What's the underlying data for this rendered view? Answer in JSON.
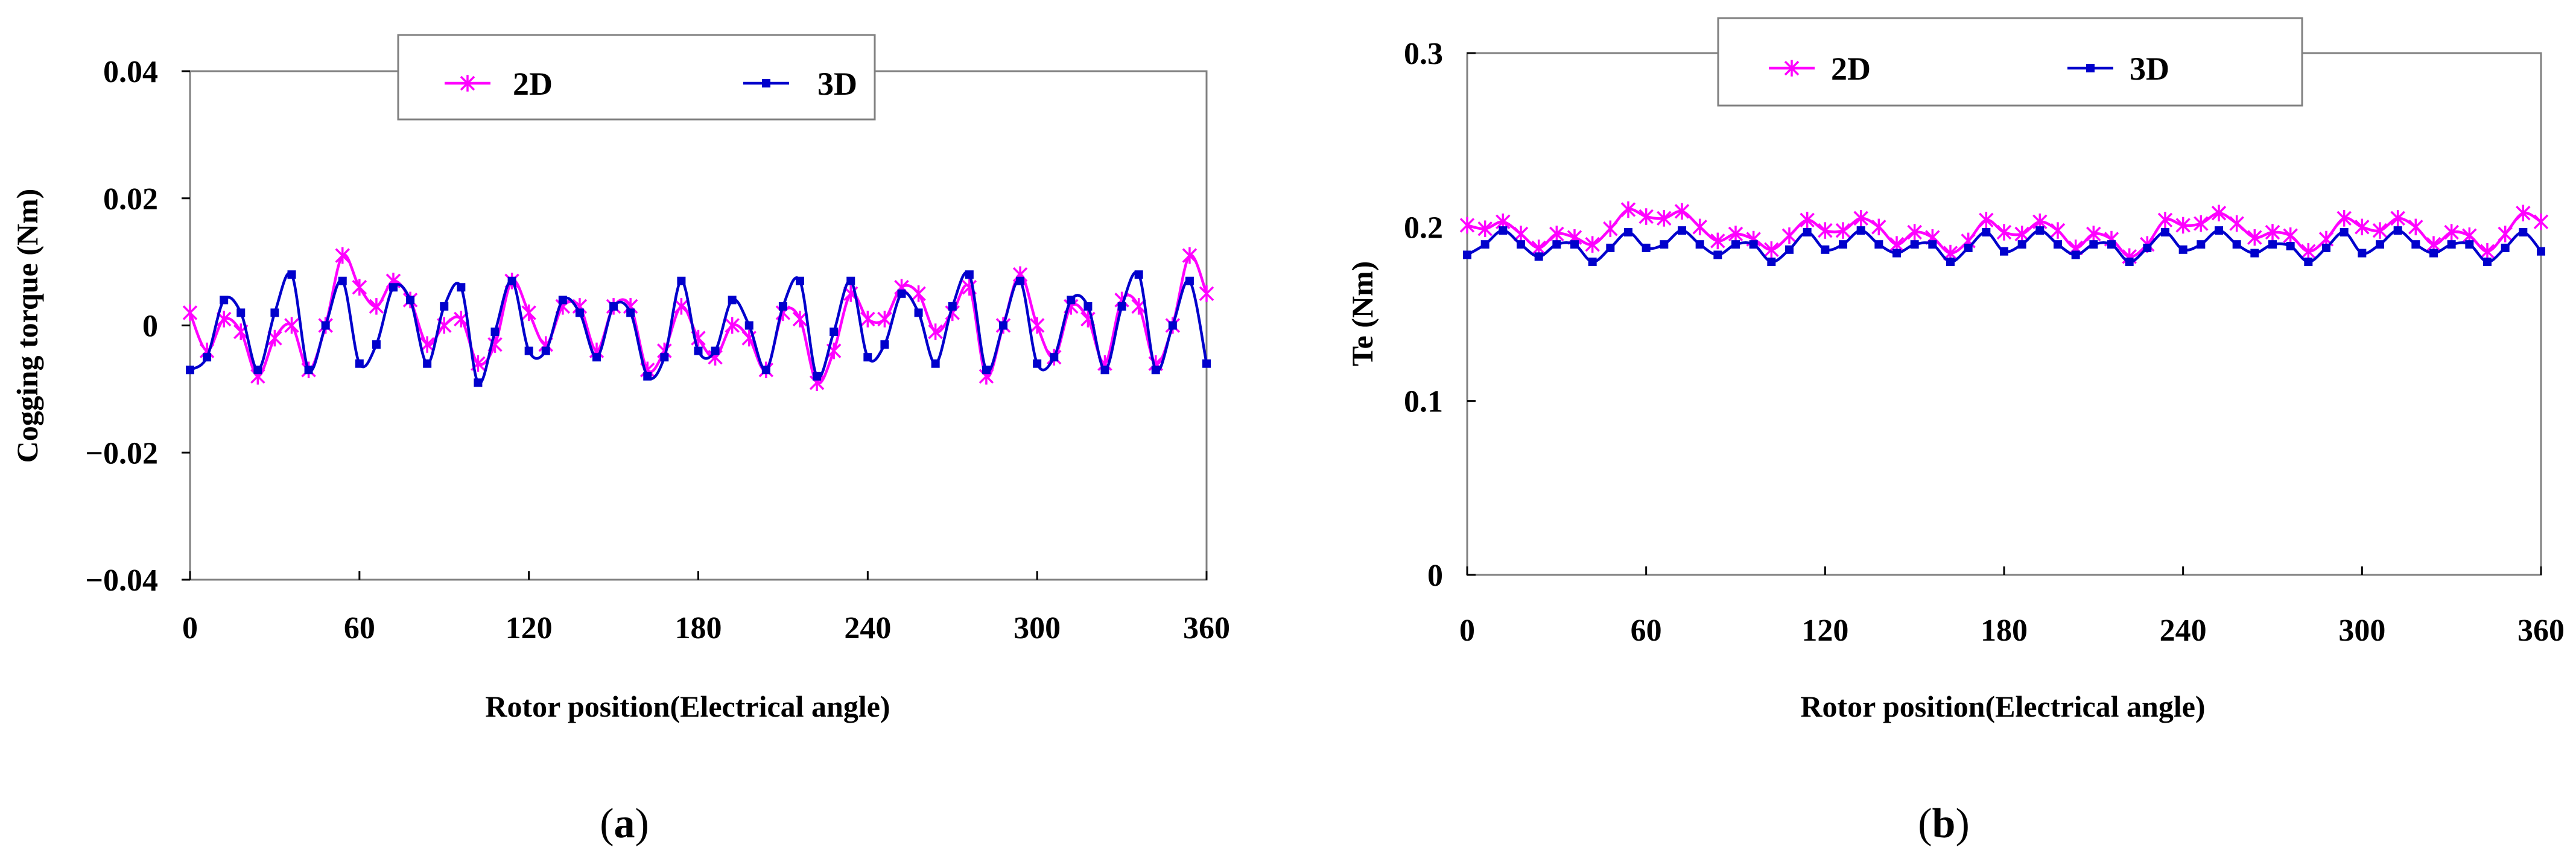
{
  "chart_data": [
    {
      "id": "a",
      "type": "line",
      "caption": "a",
      "xlabel": "Rotor position(Electrical angle)",
      "ylabel": "Cogging torque (Nm)",
      "xlim": [
        0,
        360
      ],
      "ylim": [
        -0.04,
        0.04
      ],
      "xticks": [
        0,
        60,
        120,
        180,
        240,
        300,
        360
      ],
      "xtick_labels": [
        "0",
        "60",
        "120",
        "180",
        "240",
        "300",
        "360"
      ],
      "yticks": [
        0.04,
        0.02,
        0,
        -0.02,
        -0.04
      ],
      "ytick_labels": [
        "0.04",
        "0.02",
        "0",
        "−0.02",
        "−0.04"
      ],
      "grid": false,
      "legend_position": "top-center",
      "x": [
        0,
        6,
        12,
        18,
        24,
        30,
        36,
        42,
        48,
        54,
        60,
        66,
        72,
        78,
        84,
        90,
        96,
        102,
        108,
        114,
        120,
        126,
        132,
        138,
        144,
        150,
        156,
        162,
        168,
        174,
        180,
        186,
        192,
        198,
        204,
        210,
        216,
        222,
        228,
        234,
        240,
        246,
        252,
        258,
        264,
        270,
        276,
        282,
        288,
        294,
        300,
        306,
        312,
        318,
        324,
        330,
        336,
        342,
        348,
        354,
        360
      ],
      "series": [
        {
          "name": "2D",
          "color": "#ff00ff",
          "marker": "asterisk",
          "values": [
            0.002,
            -0.004,
            0.001,
            -0.001,
            -0.008,
            -0.002,
            0.0,
            -0.007,
            0.0,
            0.011,
            0.006,
            0.003,
            0.007,
            0.004,
            -0.003,
            0.0,
            0.001,
            -0.006,
            -0.003,
            0.007,
            0.002,
            -0.003,
            0.003,
            0.003,
            -0.004,
            0.003,
            0.003,
            -0.007,
            -0.004,
            0.003,
            -0.002,
            -0.005,
            0.0,
            -0.002,
            -0.007,
            0.002,
            0.001,
            -0.009,
            -0.004,
            0.005,
            0.001,
            0.001,
            0.006,
            0.005,
            -0.001,
            0.002,
            0.006,
            -0.008,
            0.0,
            0.008,
            0.0,
            -0.005,
            0.003,
            0.001,
            -0.006,
            0.004,
            0.003,
            -0.006,
            0.0,
            0.011,
            0.005
          ]
        },
        {
          "name": "3D",
          "color": "#0000cc",
          "marker": "square",
          "values": [
            -0.007,
            -0.005,
            0.004,
            0.002,
            -0.007,
            0.002,
            0.008,
            -0.007,
            0.0,
            0.007,
            -0.006,
            -0.003,
            0.006,
            0.004,
            -0.006,
            0.003,
            0.006,
            -0.009,
            -0.001,
            0.007,
            -0.004,
            -0.004,
            0.004,
            0.002,
            -0.005,
            0.003,
            0.002,
            -0.008,
            -0.005,
            0.007,
            -0.004,
            -0.004,
            0.004,
            0.0,
            -0.007,
            0.003,
            0.007,
            -0.008,
            -0.001,
            0.007,
            -0.005,
            -0.003,
            0.005,
            0.002,
            -0.006,
            0.003,
            0.008,
            -0.007,
            0.0,
            0.007,
            -0.006,
            -0.005,
            0.004,
            0.003,
            -0.007,
            0.003,
            0.008,
            -0.007,
            0.0,
            0.007,
            -0.006
          ]
        }
      ]
    },
    {
      "id": "b",
      "type": "line",
      "caption": "b",
      "xlabel": "Rotor position(Electrical angle)",
      "ylabel": "Te (Nm)",
      "xlim": [
        0,
        360
      ],
      "ylim": [
        0,
        0.3
      ],
      "xticks": [
        0,
        60,
        120,
        180,
        240,
        300,
        360
      ],
      "xtick_labels": [
        "0",
        "60",
        "120",
        "180",
        "240",
        "300",
        "360"
      ],
      "yticks": [
        0.3,
        0.2,
        0.1,
        0
      ],
      "ytick_labels": [
        "0.3",
        "0.2",
        "0.1",
        "0"
      ],
      "grid": false,
      "legend_position": "top-center",
      "x": [
        0,
        6,
        12,
        18,
        24,
        30,
        36,
        42,
        48,
        54,
        60,
        66,
        72,
        78,
        84,
        90,
        96,
        102,
        108,
        114,
        120,
        126,
        132,
        138,
        144,
        150,
        156,
        162,
        168,
        174,
        180,
        186,
        192,
        198,
        204,
        210,
        216,
        222,
        228,
        234,
        240,
        246,
        252,
        258,
        264,
        270,
        276,
        282,
        288,
        294,
        300,
        306,
        312,
        318,
        324,
        330,
        336,
        342,
        348,
        354,
        360
      ],
      "series": [
        {
          "name": "2D",
          "color": "#ff00ff",
          "marker": "asterisk",
          "values": [
            0.201,
            0.199,
            0.203,
            0.196,
            0.188,
            0.196,
            0.194,
            0.19,
            0.199,
            0.21,
            0.206,
            0.205,
            0.209,
            0.2,
            0.192,
            0.196,
            0.193,
            0.187,
            0.195,
            0.204,
            0.198,
            0.198,
            0.205,
            0.2,
            0.19,
            0.197,
            0.194,
            0.185,
            0.192,
            0.204,
            0.197,
            0.196,
            0.203,
            0.198,
            0.188,
            0.196,
            0.193,
            0.183,
            0.19,
            0.204,
            0.201,
            0.202,
            0.208,
            0.202,
            0.194,
            0.197,
            0.195,
            0.186,
            0.193,
            0.205,
            0.2,
            0.198,
            0.205,
            0.2,
            0.19,
            0.197,
            0.195,
            0.186,
            0.196,
            0.208,
            0.203
          ]
        },
        {
          "name": "3D",
          "color": "#0000cc",
          "marker": "square",
          "values": [
            0.184,
            0.19,
            0.198,
            0.19,
            0.183,
            0.19,
            0.19,
            0.18,
            0.188,
            0.197,
            0.188,
            0.19,
            0.198,
            0.19,
            0.184,
            0.19,
            0.19,
            0.18,
            0.187,
            0.197,
            0.187,
            0.19,
            0.198,
            0.19,
            0.185,
            0.19,
            0.19,
            0.18,
            0.188,
            0.197,
            0.186,
            0.19,
            0.198,
            0.19,
            0.184,
            0.19,
            0.19,
            0.18,
            0.188,
            0.197,
            0.187,
            0.19,
            0.198,
            0.19,
            0.185,
            0.19,
            0.189,
            0.18,
            0.188,
            0.197,
            0.185,
            0.19,
            0.198,
            0.19,
            0.185,
            0.19,
            0.19,
            0.18,
            0.188,
            0.197,
            0.186
          ]
        }
      ]
    }
  ]
}
